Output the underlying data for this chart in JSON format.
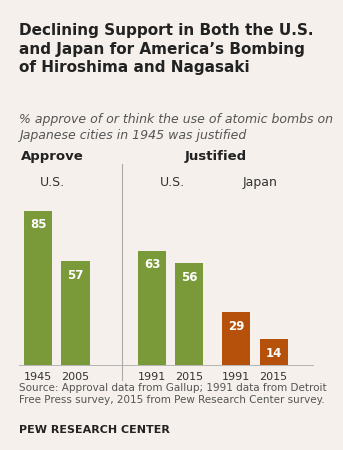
{
  "title": "Declining Support in Both the U.S.\nand Japan for America’s Bombing\nof Hiroshima and Nagasaki",
  "subtitle": "% approve of or think the use of atomic bombs on\nJapanese cities in 1945 was justified",
  "sections": [
    {
      "label": "Approve",
      "subsections": [
        {
          "country": "U.S.",
          "bars": [
            {
              "year": "1945",
              "value": 85,
              "color": "#7a9a3a"
            },
            {
              "year": "2005",
              "value": 57,
              "color": "#7a9a3a"
            }
          ]
        }
      ]
    },
    {
      "label": "Justified",
      "subsections": [
        {
          "country": "U.S.",
          "bars": [
            {
              "year": "1991",
              "value": 63,
              "color": "#7a9a3a"
            },
            {
              "year": "2015",
              "value": 56,
              "color": "#7a9a3a"
            }
          ]
        },
        {
          "country": "Japan",
          "bars": [
            {
              "year": "1991",
              "value": 29,
              "color": "#b5510a"
            },
            {
              "year": "2015",
              "value": 14,
              "color": "#b5510a"
            }
          ]
        }
      ]
    }
  ],
  "source_text": "Source: Approval data from Gallup; 1991 data from Detroit\nFree Press survey, 2015 from Pew Research Center survey.",
  "footer": "PEW RESEARCH CENTER",
  "background_color": "#f5f0eb",
  "title_fontsize": 11,
  "subtitle_fontsize": 9,
  "label_fontsize": 9.5,
  "value_fontsize": 8.5,
  "tick_fontsize": 8,
  "source_fontsize": 7.5,
  "footer_fontsize": 8
}
